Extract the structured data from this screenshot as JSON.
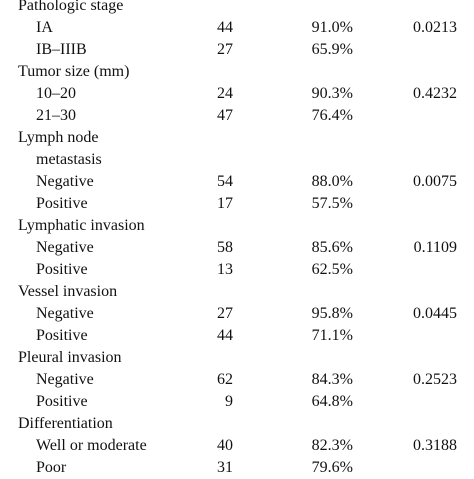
{
  "table": {
    "rows": [
      {
        "type": "group",
        "label": "Pathologic stage",
        "n": "",
        "pct": "",
        "p": ""
      },
      {
        "type": "sub",
        "label": "IA",
        "n": "44",
        "pct": "91.0%",
        "p": "0.0213"
      },
      {
        "type": "sub",
        "label": "IB–IIIB",
        "n": "27",
        "pct": "65.9%",
        "p": ""
      },
      {
        "type": "group",
        "label": "Tumor size (mm)",
        "n": "",
        "pct": "",
        "p": ""
      },
      {
        "type": "sub",
        "label": "10–20",
        "n": "24",
        "pct": "90.3%",
        "p": "0.4232"
      },
      {
        "type": "sub",
        "label": "21–30",
        "n": "47",
        "pct": "76.4%",
        "p": ""
      },
      {
        "type": "group",
        "label": "Lymph node",
        "n": "",
        "pct": "",
        "p": ""
      },
      {
        "type": "sub",
        "label": "metastasis",
        "n": "",
        "pct": "",
        "p": ""
      },
      {
        "type": "sub",
        "label": "Negative",
        "n": "54",
        "pct": "88.0%",
        "p": "0.0075"
      },
      {
        "type": "sub",
        "label": "Positive",
        "n": "17",
        "pct": "57.5%",
        "p": ""
      },
      {
        "type": "group",
        "label": "Lymphatic invasion",
        "n": "",
        "pct": "",
        "p": ""
      },
      {
        "type": "sub",
        "label": "Negative",
        "n": "58",
        "pct": "85.6%",
        "p": "0.1109"
      },
      {
        "type": "sub",
        "label": "Positive",
        "n": "13",
        "pct": "62.5%",
        "p": ""
      },
      {
        "type": "group",
        "label": "Vessel invasion",
        "n": "",
        "pct": "",
        "p": ""
      },
      {
        "type": "sub",
        "label": "Negative",
        "n": "27",
        "pct": "95.8%",
        "p": "0.0445"
      },
      {
        "type": "sub",
        "label": "Positive",
        "n": "44",
        "pct": "71.1%",
        "p": ""
      },
      {
        "type": "group",
        "label": "Pleural invasion",
        "n": "",
        "pct": "",
        "p": ""
      },
      {
        "type": "sub",
        "label": "Negative",
        "n": "62",
        "pct": "84.3%",
        "p": "0.2523"
      },
      {
        "type": "sub",
        "label": "Positive",
        "n": "9",
        "pct": "64.8%",
        "p": ""
      },
      {
        "type": "group",
        "label": "Differentiation",
        "n": "",
        "pct": "",
        "p": ""
      },
      {
        "type": "sub",
        "label": "Well or moderate",
        "n": "40",
        "pct": "82.3%",
        "p": "0.3188"
      },
      {
        "type": "sub",
        "label": "Poor",
        "n": "31",
        "pct": "79.6%",
        "p": ""
      }
    ]
  }
}
